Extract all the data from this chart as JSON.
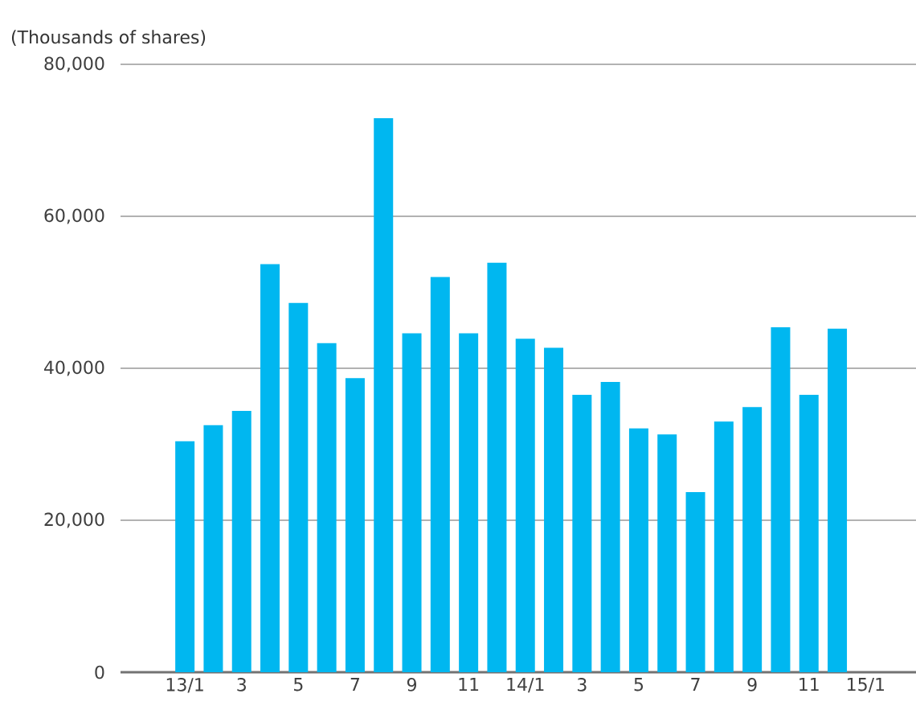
{
  "chart_data": {
    "type": "bar",
    "ylabel": "(Thousands of shares)",
    "categories": [
      "13/1",
      null,
      "3",
      null,
      "5",
      null,
      "7",
      null,
      "9",
      null,
      "11",
      null,
      "14/1",
      null,
      "3",
      null,
      "5",
      null,
      "7",
      null,
      "9",
      null,
      "11",
      null,
      "15/1"
    ],
    "values": [
      30400,
      32500,
      34400,
      53700,
      48600,
      43300,
      38700,
      72900,
      44600,
      52000,
      44600,
      53900,
      43900,
      42700,
      36500,
      38200,
      32100,
      31300,
      23700,
      33000,
      34900,
      45400,
      36500,
      45200,
      null
    ],
    "color": "#00b7f0",
    "ylim": [
      0,
      80000
    ],
    "yticks": [
      {
        "value": 0,
        "label": "0"
      },
      {
        "value": 20000,
        "label": "20,000"
      },
      {
        "value": 40000,
        "label": "40,000"
      },
      {
        "value": 60000,
        "label": "60,000"
      },
      {
        "value": 80000,
        "label": "80,000"
      }
    ],
    "grid": "y"
  }
}
